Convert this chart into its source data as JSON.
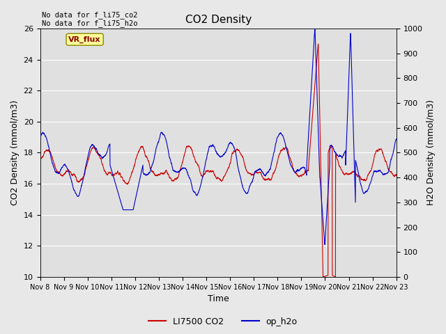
{
  "title": "CO2 Density",
  "xlabel": "Time",
  "ylabel_left": "CO2 Density (mmol/m3)",
  "ylabel_right": "H2O Density (mmol/m3)",
  "ylim_left": [
    10,
    26
  ],
  "ylim_right": [
    0,
    1000
  ],
  "annotation_top_left": "No data for f_li75_co2\nNo data for f_li75_h2o",
  "vr_flux_label": "VR_flux",
  "legend_co2": "LI7500 CO2",
  "legend_h2o": "op_h2o",
  "co2_color": "#cc0000",
  "h2o_color": "#0000cc",
  "bg_color": "#e8e8e8",
  "plot_bg": "#e0e0e0",
  "grid_color": "#ffffff",
  "xtick_labels": [
    "Nov 8",
    "Nov 9",
    "Nov 10",
    "Nov 11",
    "Nov 12",
    "Nov 13",
    "Nov 14",
    "Nov 15",
    "Nov 16",
    "Nov 17",
    "Nov 18",
    "Nov 19",
    "Nov 20",
    "Nov 21",
    "Nov 22",
    "Nov 23"
  ],
  "n_days": 15,
  "seed": 42
}
